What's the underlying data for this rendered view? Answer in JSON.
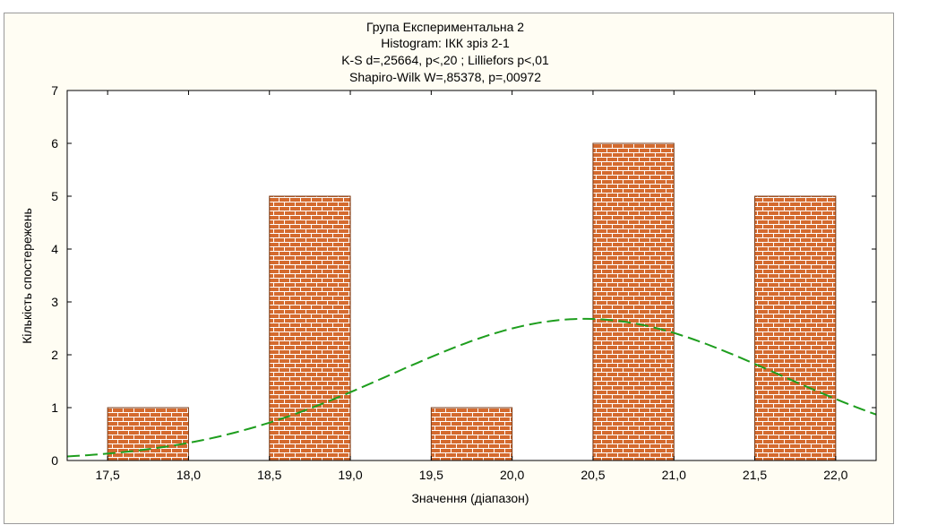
{
  "chart_data": {
    "type": "bar",
    "title": [
      "Група Експериментальна 2",
      "Histogram: ІКК зріз 2-1",
      "K-S d=,25664, p<,20 ; Lilliefors p<,01",
      "Shapiro-Wilk W=,85378, p=,00972"
    ],
    "xlabel": "Значення (діапазон)",
    "ylabel": "Кількість спостережень",
    "x_ticks": [
      "17,5",
      "18,0",
      "18,5",
      "19,0",
      "19,5",
      "20,0",
      "20,5",
      "21,0",
      "21,5",
      "22,0"
    ],
    "y_ticks": [
      "0",
      "1",
      "2",
      "3",
      "4",
      "5",
      "6",
      "7"
    ],
    "xlim": [
      17.25,
      22.25
    ],
    "ylim": [
      0,
      7
    ],
    "bins": [
      {
        "from": 17.5,
        "to": 18.0,
        "count": 1
      },
      {
        "from": 18.5,
        "to": 19.0,
        "count": 5
      },
      {
        "from": 19.5,
        "to": 20.0,
        "count": 1
      },
      {
        "from": 20.5,
        "to": 21.0,
        "count": 6
      },
      {
        "from": 21.5,
        "to": 22.0,
        "count": 5
      }
    ],
    "normal_curve": {
      "style": "dashed",
      "color": "#1e9e1e",
      "mean": 20.45,
      "peak": 2.68,
      "sd": 1.2
    },
    "bar_fill": "#d46a2e",
    "bar_mortar": "#ffffff",
    "grid": false,
    "legend": "none"
  }
}
